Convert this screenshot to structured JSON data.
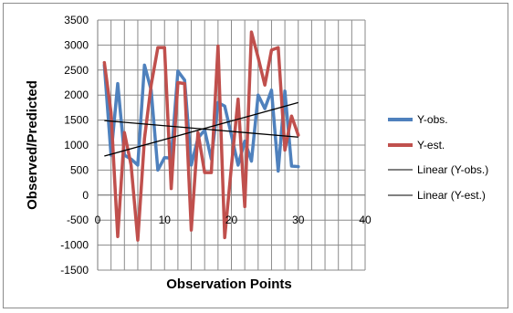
{
  "chart_data": {
    "type": "line",
    "title": "",
    "xlabel": "Observation Points",
    "ylabel": "Observed/Predicted",
    "xlim": [
      0,
      40
    ],
    "ylim": [
      -1500,
      3500
    ],
    "xticks": [
      0,
      10,
      20,
      30,
      40
    ],
    "yticks": [
      -1500,
      -1000,
      -500,
      0,
      500,
      1000,
      1500,
      2000,
      2500,
      3000,
      3500
    ],
    "vertical_grid": [
      0,
      2,
      4,
      6,
      8,
      10,
      12,
      14,
      16,
      18,
      20,
      22,
      24,
      26,
      28,
      30,
      32,
      34,
      36,
      38,
      40
    ],
    "grid": true,
    "legend_position": "right",
    "series": [
      {
        "name": "Y-obs.",
        "color": "#4f81bd",
        "x": [
          1,
          2,
          3,
          4,
          5,
          6,
          7,
          8,
          9,
          10,
          11,
          12,
          13,
          14,
          15,
          16,
          17,
          18,
          19,
          20,
          21,
          22,
          23,
          24,
          25,
          26,
          27,
          28,
          29,
          30
        ],
        "values": [
          2600,
          800,
          2230,
          800,
          720,
          600,
          2600,
          2100,
          500,
          750,
          740,
          2480,
          2300,
          600,
          1140,
          1300,
          720,
          1850,
          1780,
          1200,
          600,
          1080,
          680,
          2000,
          1730,
          2100,
          480,
          2080,
          580,
          570
        ]
      },
      {
        "name": "Y-est.",
        "color": "#c0504d",
        "x": [
          1,
          2,
          3,
          4,
          5,
          6,
          7,
          8,
          9,
          10,
          11,
          12,
          13,
          14,
          15,
          16,
          17,
          18,
          19,
          20,
          21,
          22,
          23,
          24,
          25,
          26,
          27,
          28,
          29,
          30
        ],
        "values": [
          2650,
          1650,
          -830,
          1250,
          600,
          -900,
          1130,
          2200,
          2950,
          2950,
          130,
          2250,
          2230,
          -700,
          1250,
          450,
          450,
          2980,
          -850,
          570,
          1920,
          -230,
          3260,
          2750,
          2200,
          2900,
          2950,
          900,
          1580,
          1200
        ]
      }
    ],
    "trendlines": [
      {
        "name": "Linear (Y-obs.)",
        "color": "#000000",
        "x": [
          1,
          30
        ],
        "values": [
          1490,
          1160
        ]
      },
      {
        "name": "Linear (Y-est.)",
        "color": "#000000",
        "x": [
          1,
          30
        ],
        "values": [
          780,
          1850
        ]
      }
    ]
  }
}
